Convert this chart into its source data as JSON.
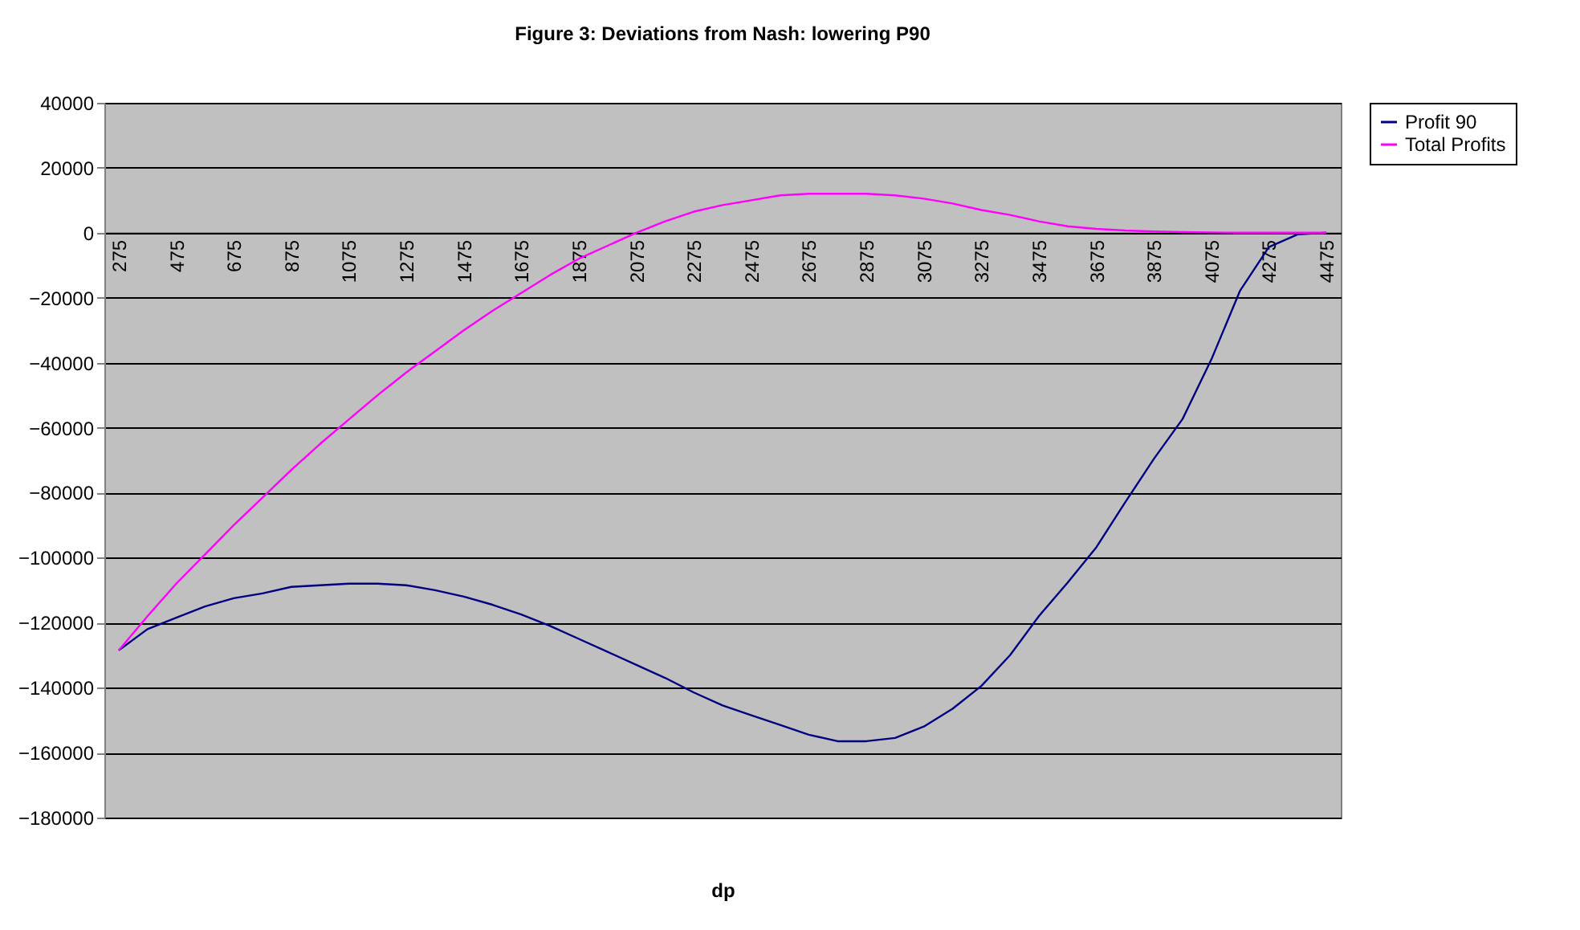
{
  "chart_data": {
    "type": "line",
    "title": "Figure 3: Deviations from Nash: lowering P90",
    "xlabel": "dp",
    "categories": [
      "275",
      null,
      "475",
      null,
      "675",
      null,
      "875",
      null,
      "1075",
      null,
      "1275",
      null,
      "1475",
      null,
      "1675",
      null,
      "1875",
      null,
      "2075",
      null,
      "2275",
      null,
      "2475",
      null,
      "2675",
      null,
      "2875",
      null,
      "3075",
      null,
      "3275",
      null,
      "3475",
      null,
      "3675",
      null,
      "3875",
      null,
      "4075",
      null,
      "4275",
      null,
      "4475"
    ],
    "series": [
      {
        "name": "Profit 90",
        "color": "#000080",
        "values": [
          -128500,
          -122000,
          -118500,
          -115000,
          -112500,
          -111000,
          -109000,
          -108500,
          -108000,
          -108000,
          -108500,
          -110000,
          -112000,
          -114500,
          -117500,
          -121000,
          -125000,
          -129000,
          -133000,
          -137000,
          -141500,
          -145500,
          -148500,
          -151500,
          -154500,
          -156500,
          -156500,
          -155500,
          -152000,
          -146500,
          -139500,
          -130000,
          -118000,
          -107700,
          -96800,
          -83000,
          -69600,
          -57300,
          -39000,
          -17800,
          -4400,
          -500,
          0
        ]
      },
      {
        "name": "Total Profits",
        "color": "#ff00ff",
        "values": [
          -128500,
          -118000,
          -108000,
          -99000,
          -90000,
          -81500,
          -73000,
          -65000,
          -57500,
          -50000,
          -43000,
          -36500,
          -30000,
          -24000,
          -18500,
          -13000,
          -8000,
          -4000,
          0,
          3500,
          6500,
          8500,
          10000,
          11500,
          12000,
          12000,
          12000,
          11500,
          10500,
          9000,
          7000,
          5500,
          3500,
          2000,
          1200,
          700,
          400,
          200,
          100,
          0,
          0,
          0,
          0
        ]
      }
    ],
    "ylim": [
      -180000,
      40000
    ],
    "yticks": [
      -180000,
      -160000,
      -140000,
      -120000,
      -100000,
      -80000,
      -60000,
      -40000,
      -20000,
      0,
      20000,
      40000
    ],
    "grid": "y",
    "legend": "right",
    "marker": "none",
    "line_style": "solid"
  }
}
